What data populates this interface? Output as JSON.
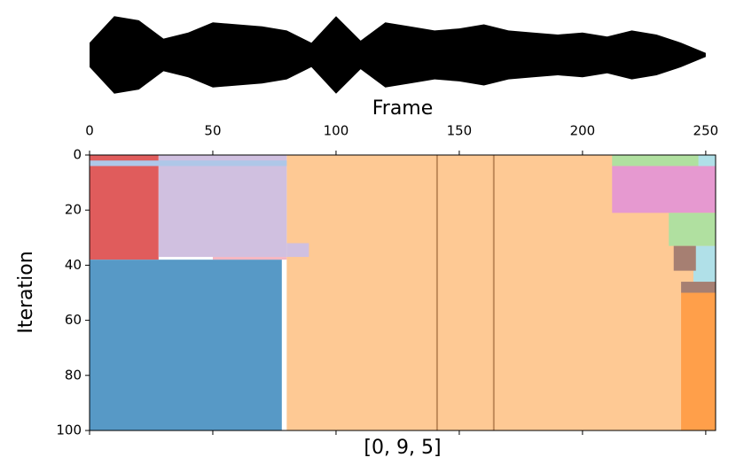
{
  "chart_data": {
    "type": "segmentation",
    "x_label": "Frame",
    "y_label": "Iteration",
    "bottom_label": "[0, 9, 5]",
    "xlim": [
      0,
      254
    ],
    "ylim": [
      0,
      100
    ],
    "xticks": [
      0,
      50,
      100,
      150,
      200,
      250
    ],
    "yticks": [
      0,
      20,
      40,
      60,
      80,
      100
    ],
    "waveform": {
      "color": "#000000",
      "ylim": [
        -1,
        1
      ],
      "x": [
        0,
        10,
        20,
        30,
        40,
        50,
        60,
        70,
        80,
        90,
        100,
        110,
        120,
        130,
        140,
        150,
        160,
        170,
        180,
        190,
        200,
        210,
        220,
        230,
        240,
        250
      ],
      "amplitude": [
        0.3,
        0.95,
        0.85,
        0.4,
        0.55,
        0.8,
        0.75,
        0.7,
        0.6,
        0.3,
        0.95,
        0.35,
        0.8,
        0.7,
        0.6,
        0.65,
        0.75,
        0.6,
        0.55,
        0.5,
        0.55,
        0.45,
        0.6,
        0.5,
        0.3,
        0.05
      ]
    },
    "regions": [
      {
        "color": "#fec994",
        "x0": 80,
        "x1": 254,
        "y0": 0,
        "y1": 100
      },
      {
        "color": "#e05c5c",
        "x0": 0,
        "x1": 28,
        "y0": 0,
        "y1": 38
      },
      {
        "color": "#d0c0e0",
        "x0": 28,
        "x1": 80,
        "y0": 0,
        "y1": 37
      },
      {
        "color": "#d0c0e0",
        "x0": 80,
        "x1": 89,
        "y0": 32,
        "y1": 37
      },
      {
        "color": "#aec7e8",
        "x0": 0,
        "x1": 80,
        "y0": 2,
        "y1": 4
      },
      {
        "color": "#f4b6c2",
        "x0": 50,
        "x1": 80,
        "y0": 37,
        "y1": 38
      },
      {
        "color": "#5799c6",
        "x0": 0,
        "x1": 78,
        "y0": 38,
        "y1": 100
      },
      {
        "color": "#b0e0a0",
        "x0": 212,
        "x1": 254,
        "y0": 0,
        "y1": 4
      },
      {
        "color": "#e699d0",
        "x0": 212,
        "x1": 254,
        "y0": 4,
        "y1": 21
      },
      {
        "color": "#b0e0a0",
        "x0": 235,
        "x1": 254,
        "y0": 21,
        "y1": 33
      },
      {
        "color": "#b0e0e8",
        "x0": 247,
        "x1": 254,
        "y0": 0,
        "y1": 4
      },
      {
        "color": "#b0e0e8",
        "x0": 245,
        "x1": 254,
        "y0": 33,
        "y1": 47
      },
      {
        "color": "#a67f72",
        "x0": 237,
        "x1": 246,
        "y0": 33,
        "y1": 42
      },
      {
        "color": "#a67f72",
        "x0": 240,
        "x1": 254,
        "y0": 46,
        "y1": 50
      },
      {
        "color": "#ff9f4a",
        "x0": 240,
        "x1": 254,
        "y0": 50,
        "y1": 100
      }
    ],
    "boundaries": {
      "color": "#c08a5a",
      "x": [
        141,
        164
      ]
    }
  }
}
